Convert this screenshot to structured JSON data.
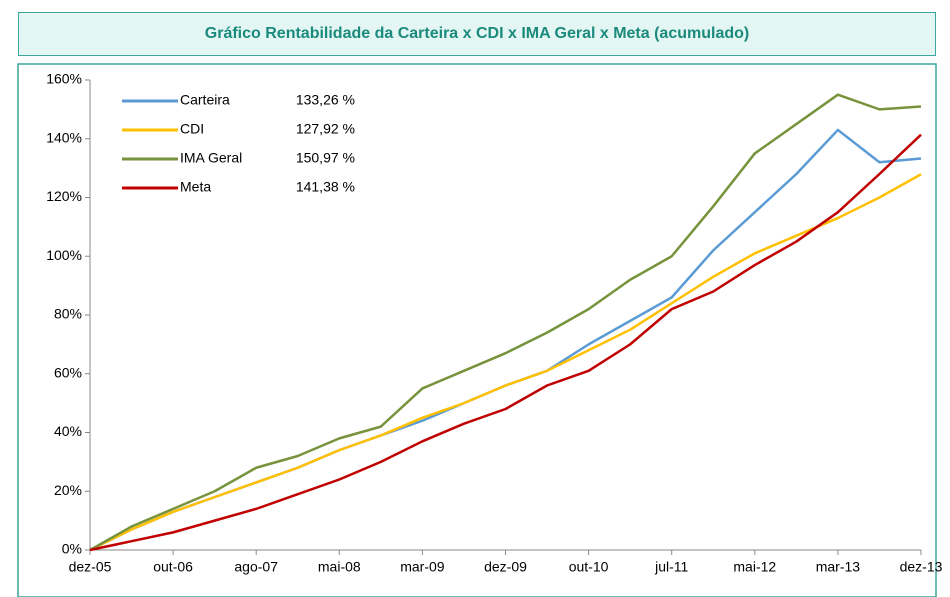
{
  "chart_data": {
    "type": "line",
    "title": "Gráfico Rentabilidade da Carteira x CDI x IMA Geral x Meta (acumulado)",
    "categories": [
      "dez-05",
      null,
      "out-06",
      null,
      "ago-07",
      null,
      "mai-08",
      null,
      "mar-09",
      null,
      "dez-09",
      null,
      "out-10",
      null,
      "jul-11",
      null,
      "mai-12",
      null,
      "mar-13",
      null,
      "dez-13"
    ],
    "series": [
      {
        "name": "Carteira",
        "legend_value": "133,26 %",
        "color": "#5b9bd5",
        "values": [
          0,
          7,
          13,
          18,
          23,
          28,
          34,
          39,
          44,
          50,
          56,
          61,
          70,
          78,
          86,
          102,
          115,
          128,
          143,
          132,
          133.26
        ]
      },
      {
        "name": "CDI",
        "legend_value": "127,92 %",
        "color": "#ffc000",
        "values": [
          0,
          7,
          13,
          18,
          23,
          28,
          34,
          39,
          45,
          50,
          56,
          61,
          68,
          75,
          84,
          93,
          101,
          107,
          113,
          120,
          127.92
        ]
      },
      {
        "name": "IMA Geral",
        "legend_value": "150,97 %",
        "color": "#77933c",
        "values": [
          0,
          8,
          14,
          20,
          28,
          32,
          38,
          42,
          55,
          61,
          67,
          74,
          82,
          92,
          100,
          117,
          135,
          145,
          155,
          150,
          150.97
        ]
      },
      {
        "name": "Meta",
        "legend_value": "141,38 %",
        "color": "#c00000",
        "values": [
          0,
          3,
          6,
          10,
          14,
          19,
          24,
          30,
          37,
          43,
          48,
          56,
          61,
          70,
          82,
          88,
          97,
          105,
          115,
          128,
          141.38
        ]
      }
    ],
    "ylim": [
      0,
      160
    ],
    "yticks": [
      {
        "value": 0,
        "label": "0%"
      },
      {
        "value": 20,
        "label": "20%"
      },
      {
        "value": 40,
        "label": "40%"
      },
      {
        "value": 60,
        "label": "60%"
      },
      {
        "value": 80,
        "label": "80%"
      },
      {
        "value": 100,
        "label": "100%"
      },
      {
        "value": 120,
        "label": "120%"
      },
      {
        "value": 140,
        "label": "140%"
      },
      {
        "value": 160,
        "label": "160%"
      }
    ],
    "legend": "upper left"
  }
}
